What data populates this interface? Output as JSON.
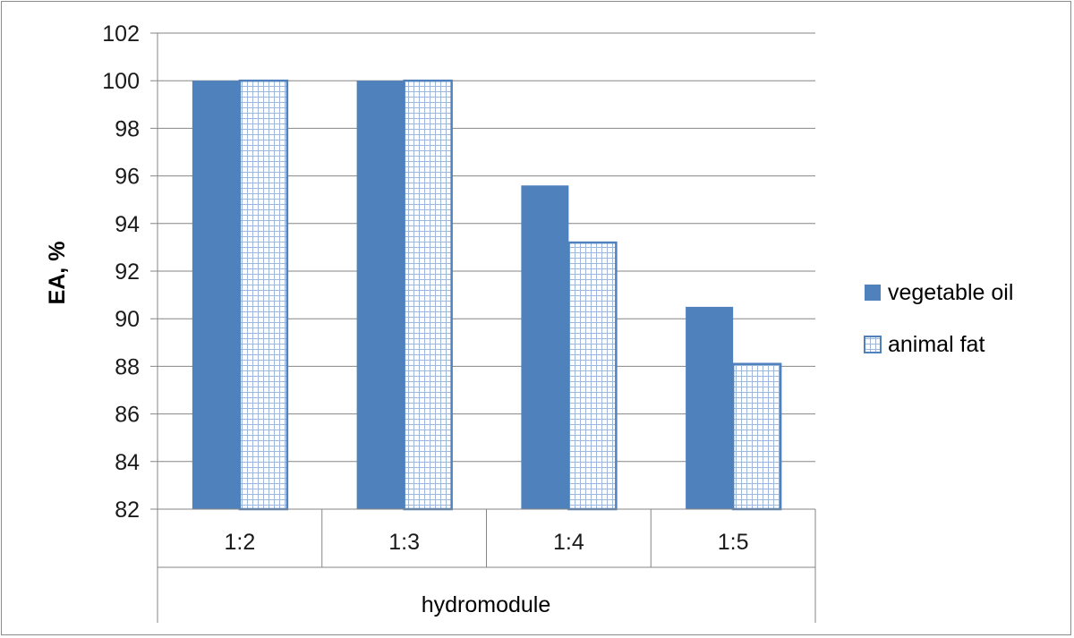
{
  "chart_data": {
    "type": "bar",
    "categories": [
      "1:2",
      "1:3",
      "1:4",
      "1:5"
    ],
    "series": [
      {
        "name": "vegetable oil",
        "values": [
          100,
          100,
          95.6,
          90.5
        ],
        "color": "#4f81bd",
        "fill": "solid"
      },
      {
        "name": "animal fat",
        "values": [
          100,
          100,
          93.2,
          88.1
        ],
        "color": "#4f81bd",
        "fill": "dotted-pattern"
      }
    ],
    "xlabel": "hydromodule",
    "ylabel": "EA, %",
    "ylim": [
      82,
      102
    ],
    "yticks": [
      82,
      84,
      86,
      88,
      90,
      92,
      94,
      96,
      98,
      100,
      102
    ],
    "grid": true,
    "legend_position": "right"
  }
}
